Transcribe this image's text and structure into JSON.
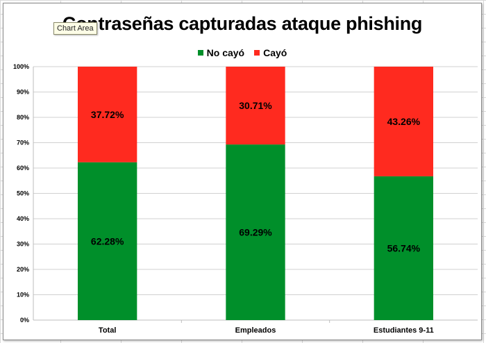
{
  "chart_data": {
    "type": "bar",
    "stacked": true,
    "normalized": true,
    "title": "Contraseñas capturadas ataque phishing",
    "categories": [
      "Total",
      "Empleados",
      "Estudiantes 9-11"
    ],
    "series": [
      {
        "name": "No cayó",
        "color": "#008f2a",
        "values": [
          62.28,
          69.29,
          56.74
        ],
        "labels": [
          "62.28%",
          "69.29%",
          "56.74%"
        ]
      },
      {
        "name": "Cayó",
        "color": "#ff2a1f",
        "values": [
          37.72,
          30.71,
          43.26
        ],
        "labels": [
          "37.72%",
          "30.71%",
          "43.26%"
        ]
      }
    ],
    "yticks": [
      "0%",
      "10%",
      "20%",
      "30%",
      "40%",
      "50%",
      "60%",
      "70%",
      "80%",
      "90%",
      "100%"
    ],
    "ylim": [
      0,
      100
    ],
    "legend_position": "top",
    "grid": true
  },
  "ui": {
    "tooltip": "Chart Area"
  }
}
